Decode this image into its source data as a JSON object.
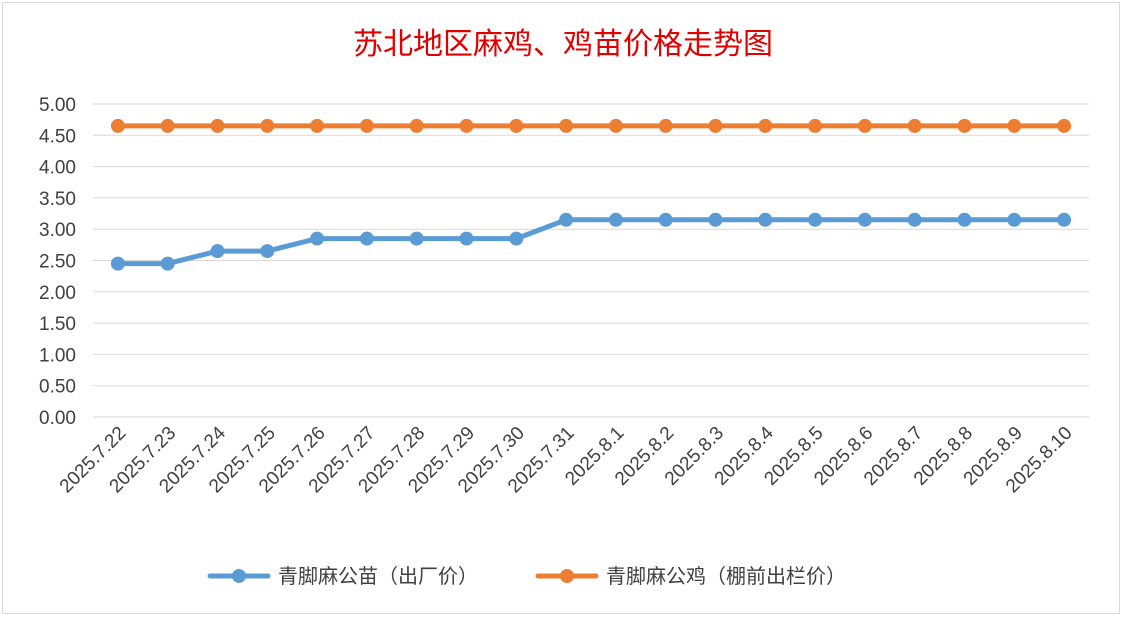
{
  "chart_data": {
    "type": "line",
    "title": "苏北地区麻鸡、鸡苗价格走势图",
    "xlabel": "",
    "ylabel": "",
    "categories": [
      "2025.7.22",
      "2025.7.23",
      "2025.7.24",
      "2025.7.25",
      "2025.7.26",
      "2025.7.27",
      "2025.7.28",
      "2025.7.29",
      "2025.7.30",
      "2025.7.31",
      "2025.8.1",
      "2025.8.2",
      "2025.8.3",
      "2025.8.4",
      "2025.8.5",
      "2025.8.6",
      "2025.8.7",
      "2025.8.8",
      "2025.8.9",
      "2025.8.10"
    ],
    "ylim": [
      0,
      5
    ],
    "yticks": [
      "0.00",
      "0.50",
      "1.00",
      "1.50",
      "2.00",
      "2.50",
      "3.00",
      "3.50",
      "4.00",
      "4.50",
      "5.00"
    ],
    "grid": true,
    "legend_position": "bottom",
    "series": [
      {
        "name": "青脚麻公苗（出厂价）",
        "color": "#5b9bd5",
        "values": [
          2.45,
          2.45,
          2.65,
          2.65,
          2.85,
          2.85,
          2.85,
          2.85,
          2.85,
          3.15,
          3.15,
          3.15,
          3.15,
          3.15,
          3.15,
          3.15,
          3.15,
          3.15,
          3.15,
          3.15
        ]
      },
      {
        "name": "青脚麻公鸡（棚前出栏价）",
        "color": "#ed7d31",
        "values": [
          4.65,
          4.65,
          4.65,
          4.65,
          4.65,
          4.65,
          4.65,
          4.65,
          4.65,
          4.65,
          4.65,
          4.65,
          4.65,
          4.65,
          4.65,
          4.65,
          4.65,
          4.65,
          4.65,
          4.65
        ]
      }
    ]
  }
}
